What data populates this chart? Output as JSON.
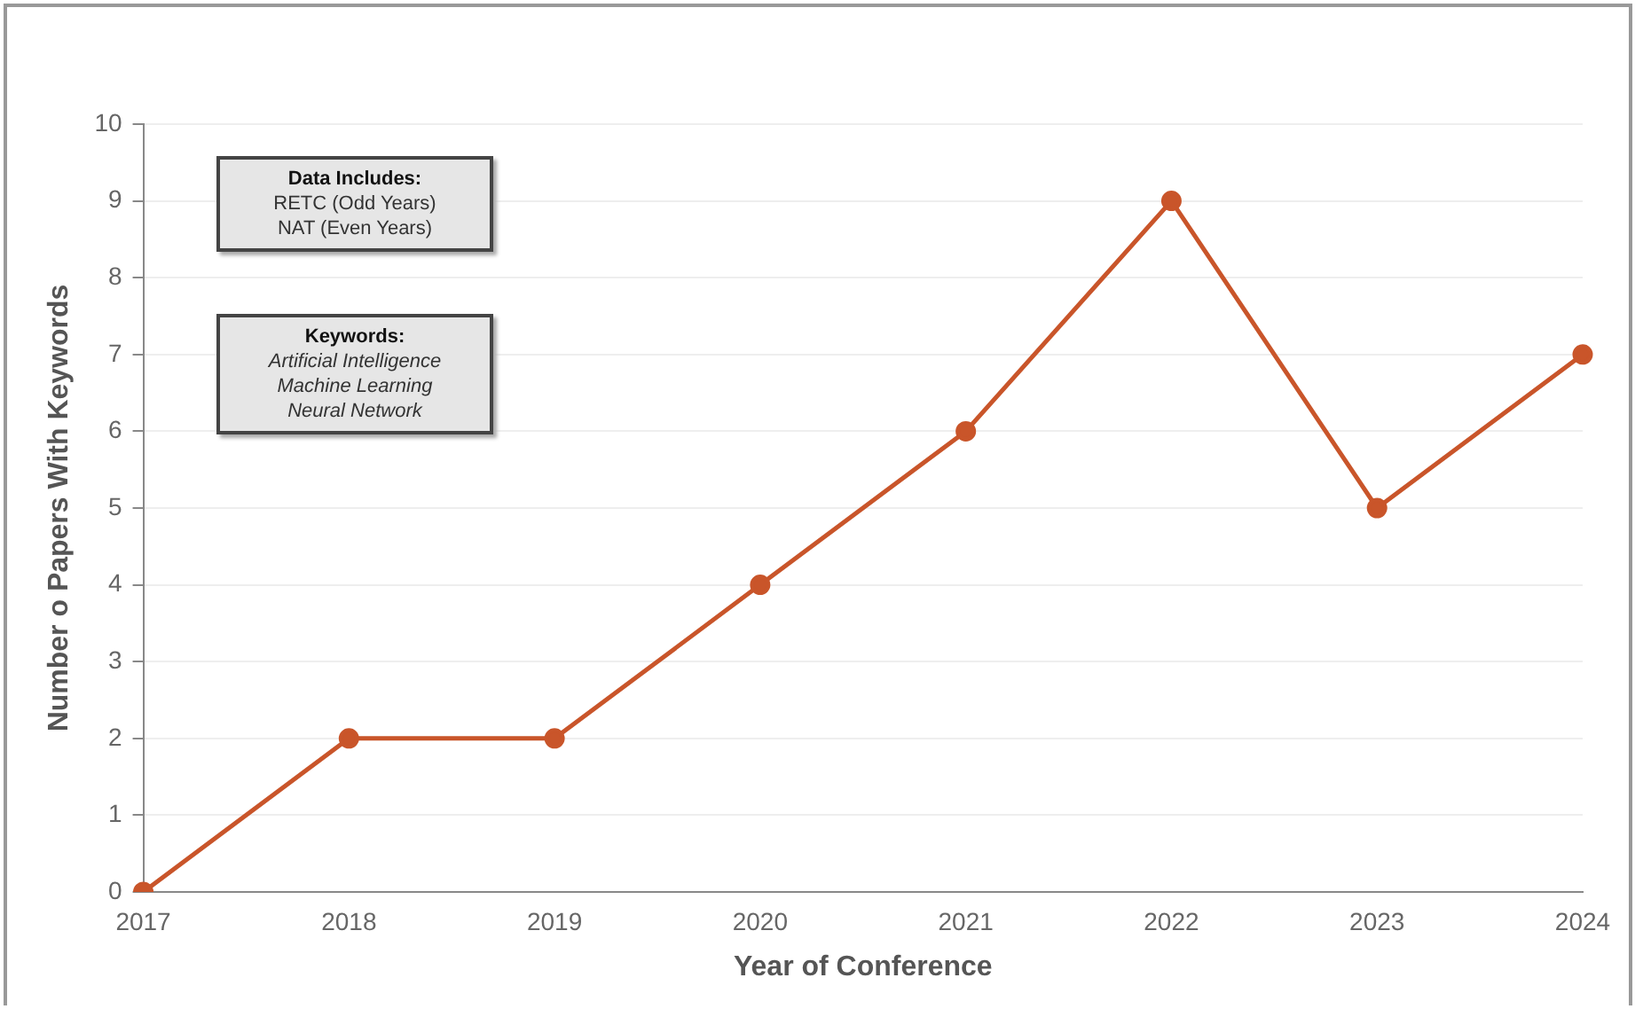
{
  "chart_data": {
    "type": "line",
    "xlabel": "Year of Conference",
    "ylabel": "Number o Papers With Keywords",
    "categories": [
      "2017",
      "2018",
      "2019",
      "2020",
      "2021",
      "2022",
      "2023",
      "2024"
    ],
    "series": [
      {
        "color": "#c9552a",
        "values": [
          0,
          2,
          2,
          4,
          6,
          9,
          5,
          7
        ]
      }
    ],
    "ylim": [
      0,
      10
    ],
    "yticks": [
      0,
      1,
      2,
      3,
      4,
      5,
      6,
      7,
      8,
      9,
      10
    ],
    "grid": "y",
    "legend": false,
    "marker": "circle",
    "line_style": "solid",
    "annotations": [
      "Data Includes:\nRETC (Odd Years)\nNAT (Even Years)",
      "Keywords:\nArtificial Intelligence\nMachine Learning\nNeural Network"
    ]
  }
}
